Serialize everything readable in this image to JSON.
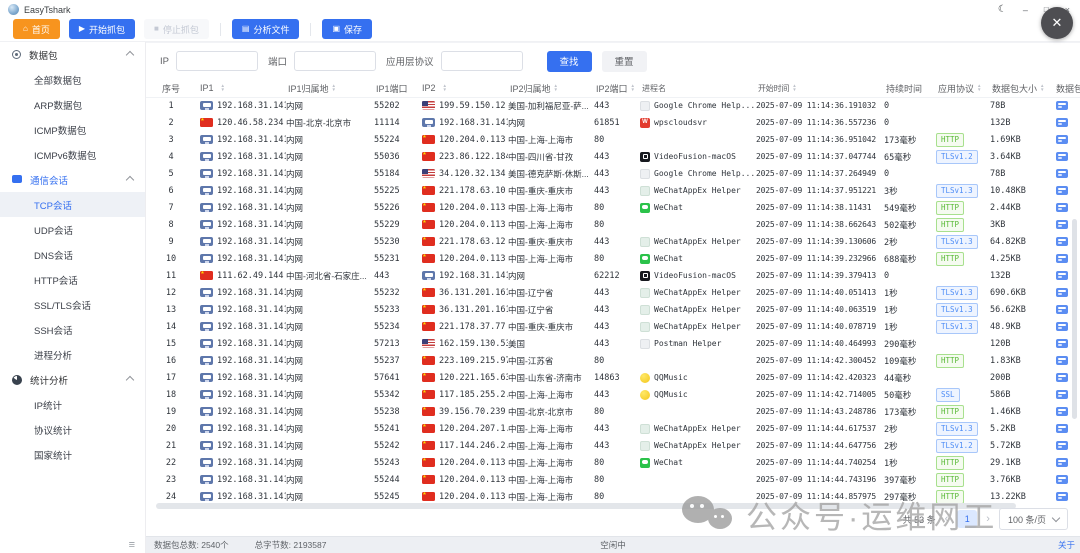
{
  "app": {
    "title": "EasyTshark"
  },
  "window_controls": {
    "theme": "☾",
    "minimize": "–",
    "maximize": "□",
    "close": "×",
    "close_fab": "✕"
  },
  "toolbar": {
    "buttons": [
      {
        "id": "home",
        "label": "首页",
        "style": "orange",
        "icon": "home-icon",
        "glyph": "⌂"
      },
      {
        "id": "start",
        "label": "开始抓包",
        "style": "blue",
        "icon": "play-icon",
        "glyph": "▶"
      },
      {
        "id": "stop",
        "label": "停止抓包",
        "style": "disabled",
        "icon": "stop-icon",
        "glyph": "■"
      },
      {
        "id": "analyze",
        "label": "分析文件",
        "style": "blue",
        "icon": "file-icon",
        "glyph": "▤",
        "divider_before": true
      },
      {
        "id": "save",
        "label": "保存",
        "style": "blue",
        "icon": "save-icon",
        "glyph": "▣",
        "divider_before": true
      }
    ]
  },
  "sidebar": {
    "groups": [
      {
        "id": "packets",
        "label": "数据包",
        "icon": "packet-icon",
        "active": false,
        "items": [
          "全部数据包",
          "ARP数据包",
          "ICMP数据包",
          "ICMPv6数据包"
        ]
      },
      {
        "id": "sessions",
        "label": "通信会话",
        "icon": "chat-icon",
        "active": true,
        "active_item": "TCP会话",
        "items": [
          "TCP会话",
          "UDP会话",
          "DNS会话",
          "HTTP会话",
          "SSL/TLS会话",
          "SSH会话",
          "进程分析"
        ]
      },
      {
        "id": "stats",
        "label": "统计分析",
        "icon": "pie-icon",
        "active": false,
        "items": [
          "IP统计",
          "协议统计",
          "国家统计"
        ]
      }
    ]
  },
  "filters": {
    "fields": [
      {
        "id": "ip",
        "label": "IP",
        "value": "",
        "placeholder": ""
      },
      {
        "id": "port",
        "label": "端口",
        "value": "",
        "placeholder": ""
      },
      {
        "id": "proto",
        "label": "应用层协议",
        "value": "",
        "placeholder": ""
      }
    ],
    "search_label": "查找",
    "reset_label": "重置"
  },
  "table": {
    "headers": [
      {
        "label": "序号",
        "sort": false,
        "cls": "c-no"
      },
      {
        "label": "IP1",
        "sort": true,
        "cls": "c-ip1"
      },
      {
        "label": "IP1归属地",
        "sort": true,
        "cls": "c-loc1"
      },
      {
        "label": "IP1端口",
        "sort": false,
        "cls": "c-p1"
      },
      {
        "label": "IP2",
        "sort": true,
        "cls": "c-ip2"
      },
      {
        "label": "IP2归属地",
        "sort": true,
        "cls": "c-loc2"
      },
      {
        "label": "IP2端口",
        "sort": true,
        "cls": "c-p2"
      },
      {
        "label": "进程名",
        "sort": false,
        "cls": "c-proc"
      },
      {
        "label": "开始时间",
        "sort": true,
        "cls": "c-time"
      },
      {
        "label": "持续时间",
        "sort": false,
        "cls": "c-dur"
      },
      {
        "label": "应用协议",
        "sort": true,
        "cls": "c-proto"
      },
      {
        "label": "数据包大小",
        "sort": true,
        "cls": "c-size"
      },
      {
        "label": "数据包数量",
        "sort": false,
        "cls": "c-cnt"
      }
    ],
    "count_icon": "packet-count-icon",
    "rows": [
      {
        "no": 1,
        "ip1": {
          "f": "lan",
          "a": "192.168.31.141",
          "l": "内网"
        },
        "p1": "55202",
        "ip2": {
          "f": "us",
          "a": "199.59.150.12",
          "l": "美国-加利福尼亚-萨..."
        },
        "p2": "443",
        "proc": {
          "i": "gray",
          "n": "Google Chrome Help..."
        },
        "t": "2025-07-09 11:14:36.191032",
        "d": "0",
        "proto": null,
        "size": "78B"
      },
      {
        "no": 2,
        "ip1": {
          "f": "cn",
          "a": "120.46.58.234",
          "l": "中国-北京-北京市"
        },
        "p1": "11114",
        "ip2": {
          "f": "lan",
          "a": "192.168.31.141",
          "l": "内网"
        },
        "p2": "61851",
        "proc": {
          "i": "red",
          "n": "wpscloudsvr"
        },
        "t": "2025-07-09 11:14:36.557236",
        "d": "0",
        "proto": null,
        "size": "132B"
      },
      {
        "no": 3,
        "ip1": {
          "f": "lan",
          "a": "192.168.31.141",
          "l": "内网"
        },
        "p1": "55224",
        "ip2": {
          "f": "cn",
          "a": "120.204.0.113",
          "l": "中国-上海-上海市"
        },
        "p2": "80",
        "proc": null,
        "t": "2025-07-09 11:14:36.951042",
        "d": "173毫秒",
        "proto": {
          "n": "HTTP",
          "c": "g"
        },
        "size": "1.69KB"
      },
      {
        "no": 4,
        "ip1": {
          "f": "lan",
          "a": "192.168.31.141",
          "l": "内网"
        },
        "p1": "55036",
        "ip2": {
          "f": "cn",
          "a": "223.86.122.184",
          "l": "中国-四川省-甘孜"
        },
        "p2": "443",
        "proc": {
          "i": "black",
          "n": "VideoFusion-macOS"
        },
        "t": "2025-07-09 11:14:37.047744",
        "d": "65毫秒",
        "proto": {
          "n": "TLSv1.2",
          "c": "b"
        },
        "size": "3.64KB"
      },
      {
        "no": 5,
        "ip1": {
          "f": "lan",
          "a": "192.168.31.141",
          "l": "内网"
        },
        "p1": "55184",
        "ip2": {
          "f": "us",
          "a": "34.120.32.134",
          "l": "美国-德克萨斯-休斯..."
        },
        "p2": "443",
        "proc": {
          "i": "gray",
          "n": "Google Chrome Help..."
        },
        "t": "2025-07-09 11:14:37.264949",
        "d": "0",
        "proto": null,
        "size": "78B"
      },
      {
        "no": 6,
        "ip1": {
          "f": "lan",
          "a": "192.168.31.141",
          "l": "内网"
        },
        "p1": "55225",
        "ip2": {
          "f": "cn",
          "a": "221.178.63.10",
          "l": "中国-重庆-重庆市"
        },
        "p2": "443",
        "proc": {
          "i": "teal",
          "n": "WeChatAppEx Helper"
        },
        "t": "2025-07-09 11:14:37.951221",
        "d": "3秒",
        "proto": {
          "n": "TLSv1.3",
          "c": "b"
        },
        "size": "10.48KB"
      },
      {
        "no": 7,
        "ip1": {
          "f": "lan",
          "a": "192.168.31.141",
          "l": "内网"
        },
        "p1": "55226",
        "ip2": {
          "f": "cn",
          "a": "120.204.0.113",
          "l": "中国-上海-上海市"
        },
        "p2": "80",
        "proc": {
          "i": "green",
          "n": "WeChat"
        },
        "t": "2025-07-09 11:14:38.11431",
        "d": "549毫秒",
        "proto": {
          "n": "HTTP",
          "c": "g"
        },
        "size": "2.44KB"
      },
      {
        "no": 8,
        "ip1": {
          "f": "lan",
          "a": "192.168.31.141",
          "l": "内网"
        },
        "p1": "55229",
        "ip2": {
          "f": "cn",
          "a": "120.204.0.113",
          "l": "中国-上海-上海市"
        },
        "p2": "80",
        "proc": null,
        "t": "2025-07-09 11:14:38.662643",
        "d": "502毫秒",
        "proto": {
          "n": "HTTP",
          "c": "g"
        },
        "size": "3KB"
      },
      {
        "no": 9,
        "ip1": {
          "f": "lan",
          "a": "192.168.31.141",
          "l": "内网"
        },
        "p1": "55230",
        "ip2": {
          "f": "cn",
          "a": "221.178.63.12",
          "l": "中国-重庆-重庆市"
        },
        "p2": "443",
        "proc": {
          "i": "teal",
          "n": "WeChatAppEx Helper"
        },
        "t": "2025-07-09 11:14:39.130606",
        "d": "2秒",
        "proto": {
          "n": "TLSv1.3",
          "c": "b"
        },
        "size": "64.82KB"
      },
      {
        "no": 10,
        "ip1": {
          "f": "lan",
          "a": "192.168.31.141",
          "l": "内网"
        },
        "p1": "55231",
        "ip2": {
          "f": "cn",
          "a": "120.204.0.113",
          "l": "中国-上海-上海市"
        },
        "p2": "80",
        "proc": {
          "i": "green",
          "n": "WeChat"
        },
        "t": "2025-07-09 11:14:39.232966",
        "d": "688毫秒",
        "proto": {
          "n": "HTTP",
          "c": "g"
        },
        "size": "4.25KB"
      },
      {
        "no": 11,
        "ip1": {
          "f": "cn",
          "a": "111.62.49.144",
          "l": "中国-河北省-石家庄..."
        },
        "p1": "443",
        "ip2": {
          "f": "lan",
          "a": "192.168.31.141",
          "l": "内网"
        },
        "p2": "62212",
        "proc": {
          "i": "black",
          "n": "VideoFusion-macOS"
        },
        "t": "2025-07-09 11:14:39.379413",
        "d": "0",
        "proto": null,
        "size": "132B"
      },
      {
        "no": 12,
        "ip1": {
          "f": "lan",
          "a": "192.168.31.141",
          "l": "内网"
        },
        "p1": "55232",
        "ip2": {
          "f": "cn",
          "a": "36.131.201.161",
          "l": "中国-辽宁省"
        },
        "p2": "443",
        "proc": {
          "i": "teal",
          "n": "WeChatAppEx Helper"
        },
        "t": "2025-07-09 11:14:40.051413",
        "d": "1秒",
        "proto": {
          "n": "TLSv1.3",
          "c": "b"
        },
        "size": "690.6KB"
      },
      {
        "no": 13,
        "ip1": {
          "f": "lan",
          "a": "192.168.31.141",
          "l": "内网"
        },
        "p1": "55233",
        "ip2": {
          "f": "cn",
          "a": "36.131.201.161",
          "l": "中国-辽宁省"
        },
        "p2": "443",
        "proc": {
          "i": "teal",
          "n": "WeChatAppEx Helper"
        },
        "t": "2025-07-09 11:14:40.063519",
        "d": "1秒",
        "proto": {
          "n": "TLSv1.3",
          "c": "b"
        },
        "size": "56.62KB"
      },
      {
        "no": 14,
        "ip1": {
          "f": "lan",
          "a": "192.168.31.141",
          "l": "内网"
        },
        "p1": "55234",
        "ip2": {
          "f": "cn",
          "a": "221.178.37.77",
          "l": "中国-重庆-重庆市"
        },
        "p2": "443",
        "proc": {
          "i": "teal",
          "n": "WeChatAppEx Helper"
        },
        "t": "2025-07-09 11:14:40.078719",
        "d": "1秒",
        "proto": {
          "n": "TLSv1.3",
          "c": "b"
        },
        "size": "48.9KB"
      },
      {
        "no": 15,
        "ip1": {
          "f": "lan",
          "a": "192.168.31.141",
          "l": "内网"
        },
        "p1": "57213",
        "ip2": {
          "f": "us",
          "a": "162.159.130.53",
          "l": "美国"
        },
        "p2": "443",
        "proc": {
          "i": "gray",
          "n": "Postman Helper"
        },
        "t": "2025-07-09 11:14:40.464993",
        "d": "290毫秒",
        "proto": null,
        "size": "120B"
      },
      {
        "no": 16,
        "ip1": {
          "f": "lan",
          "a": "192.168.31.141",
          "l": "内网"
        },
        "p1": "55237",
        "ip2": {
          "f": "cn",
          "a": "223.109.215.97",
          "l": "中国-江苏省"
        },
        "p2": "80",
        "proc": null,
        "t": "2025-07-09 11:14:42.300452",
        "d": "109毫秒",
        "proto": {
          "n": "HTTP",
          "c": "g"
        },
        "size": "1.83KB"
      },
      {
        "no": 17,
        "ip1": {
          "f": "lan",
          "a": "192.168.31.141",
          "l": "内网"
        },
        "p1": "57641",
        "ip2": {
          "f": "cn",
          "a": "120.221.165.63",
          "l": "中国-山东省-济南市"
        },
        "p2": "14863",
        "proc": {
          "i": "yellow",
          "n": "QQMusic"
        },
        "t": "2025-07-09 11:14:42.420323",
        "d": "44毫秒",
        "proto": null,
        "size": "200B"
      },
      {
        "no": 18,
        "ip1": {
          "f": "lan",
          "a": "192.168.31.141",
          "l": "内网"
        },
        "p1": "55342",
        "ip2": {
          "f": "cn",
          "a": "117.185.255.2...",
          "l": "中国-上海-上海市"
        },
        "p2": "443",
        "proc": {
          "i": "yellow",
          "n": "QQMusic"
        },
        "t": "2025-07-09 11:14:42.714005",
        "d": "50毫秒",
        "proto": {
          "n": "SSL",
          "c": "b"
        },
        "size": "586B"
      },
      {
        "no": 19,
        "ip1": {
          "f": "lan",
          "a": "192.168.31.141",
          "l": "内网"
        },
        "p1": "55238",
        "ip2": {
          "f": "cn",
          "a": "39.156.70.239",
          "l": "中国-北京-北京市"
        },
        "p2": "80",
        "proc": null,
        "t": "2025-07-09 11:14:43.248786",
        "d": "173毫秒",
        "proto": {
          "n": "HTTP",
          "c": "g"
        },
        "size": "1.46KB"
      },
      {
        "no": 20,
        "ip1": {
          "f": "lan",
          "a": "192.168.31.141",
          "l": "内网"
        },
        "p1": "55241",
        "ip2": {
          "f": "cn",
          "a": "120.204.207.1...",
          "l": "中国-上海-上海市"
        },
        "p2": "443",
        "proc": {
          "i": "teal",
          "n": "WeChatAppEx Helper"
        },
        "t": "2025-07-09 11:14:44.617537",
        "d": "2秒",
        "proto": {
          "n": "TLSv1.3",
          "c": "b"
        },
        "size": "5.2KB"
      },
      {
        "no": 21,
        "ip1": {
          "f": "lan",
          "a": "192.168.31.141",
          "l": "内网"
        },
        "p1": "55242",
        "ip2": {
          "f": "cn",
          "a": "117.144.246.2...",
          "l": "中国-上海-上海市"
        },
        "p2": "443",
        "proc": {
          "i": "teal",
          "n": "WeChatAppEx Helper"
        },
        "t": "2025-07-09 11:14:44.647756",
        "d": "2秒",
        "proto": {
          "n": "TLSv1.2",
          "c": "b"
        },
        "size": "5.72KB"
      },
      {
        "no": 22,
        "ip1": {
          "f": "lan",
          "a": "192.168.31.141",
          "l": "内网"
        },
        "p1": "55243",
        "ip2": {
          "f": "cn",
          "a": "120.204.0.113",
          "l": "中国-上海-上海市"
        },
        "p2": "80",
        "proc": {
          "i": "green",
          "n": "WeChat"
        },
        "t": "2025-07-09 11:14:44.740254",
        "d": "1秒",
        "proto": {
          "n": "HTTP",
          "c": "g"
        },
        "size": "29.1KB"
      },
      {
        "no": 23,
        "ip1": {
          "f": "lan",
          "a": "192.168.31.141",
          "l": "内网"
        },
        "p1": "55244",
        "ip2": {
          "f": "cn",
          "a": "120.204.0.113",
          "l": "中国-上海-上海市"
        },
        "p2": "80",
        "proc": null,
        "t": "2025-07-09 11:14:44.743196",
        "d": "397毫秒",
        "proto": {
          "n": "HTTP",
          "c": "g"
        },
        "size": "3.76KB"
      },
      {
        "no": 24,
        "ip1": {
          "f": "lan",
          "a": "192.168.31.141",
          "l": "内网"
        },
        "p1": "55245",
        "ip2": {
          "f": "cn",
          "a": "120.204.0.113",
          "l": "中国-上海-上海市"
        },
        "p2": "80",
        "proc": null,
        "t": "2025-07-09 11:14:44.857975",
        "d": "297毫秒",
        "proto": {
          "n": "HTTP",
          "c": "g"
        },
        "size": "13.22KB"
      }
    ]
  },
  "pagination": {
    "total": "共 53 条",
    "prev": "‹",
    "page": "1",
    "next": "›",
    "page_size": "100 条/页"
  },
  "statusbar": {
    "packets": "数据包总数: 2540个",
    "bytes": "总字节数: 2193587",
    "state": "空闲中",
    "about": "关于"
  },
  "watermark": {
    "text": "公众号·运维网工"
  }
}
